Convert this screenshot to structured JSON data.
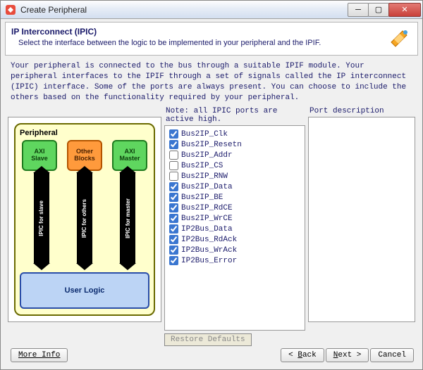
{
  "window": {
    "title": "Create Peripheral"
  },
  "header": {
    "title": "IP Interconnect (IPIC)",
    "description": "Select the interface between the logic to be implemented in your peripheral and the IPIF."
  },
  "body_text": "Your peripheral is connected to the bus through a suitable IPIF module. Your peripheral interfaces to the IPIF through a set of signals called the IP interconnect (IPIC) interface. Some of the ports are always present. You can choose to include the others based on the functionality required by your peripheral.",
  "diagram": {
    "periph_label": "Peripheral",
    "axi_slave": "AXI\nSlave",
    "other_blocks": "Other\nBlocks",
    "axi_master": "AXI\nMaster",
    "arrow_slave": "IPIC for slave",
    "arrow_others": "IPIC for others",
    "arrow_master": "IPIC for master",
    "user_logic": "User Logic"
  },
  "ports": {
    "note": "Note: all IPIC ports are active high.",
    "items": [
      {
        "label": "Bus2IP_Clk",
        "checked": true,
        "disabled": false
      },
      {
        "label": "Bus2IP_Resetn",
        "checked": true,
        "disabled": false
      },
      {
        "label": "Bus2IP_Addr",
        "checked": false,
        "disabled": false
      },
      {
        "label": "Bus2IP_CS",
        "checked": false,
        "disabled": false
      },
      {
        "label": "Bus2IP_RNW",
        "checked": false,
        "disabled": false
      },
      {
        "label": "Bus2IP_Data",
        "checked": true,
        "disabled": false
      },
      {
        "label": "Bus2IP_BE",
        "checked": true,
        "disabled": false
      },
      {
        "label": "Bus2IP_RdCE",
        "checked": true,
        "disabled": false
      },
      {
        "label": "Bus2IP_WrCE",
        "checked": true,
        "disabled": false
      },
      {
        "label": "IP2Bus_Data",
        "checked": true,
        "disabled": false
      },
      {
        "label": "IP2Bus_RdAck",
        "checked": true,
        "disabled": false
      },
      {
        "label": "IP2Bus_WrAck",
        "checked": true,
        "disabled": false
      },
      {
        "label": "IP2Bus_Error",
        "checked": true,
        "disabled": false
      }
    ],
    "restore_label": "Restore Defaults"
  },
  "desc": {
    "label": "Port description"
  },
  "footer": {
    "more_info": "More Info",
    "back": "< Back",
    "next": "Next >",
    "cancel": "Cancel"
  },
  "colors": {
    "link_text": "#1a1a6a",
    "periph_bg": "#ffffcc",
    "green": "#5fd65f",
    "orange": "#ff9a3c",
    "userlogic_bg": "#bcd4f5"
  }
}
